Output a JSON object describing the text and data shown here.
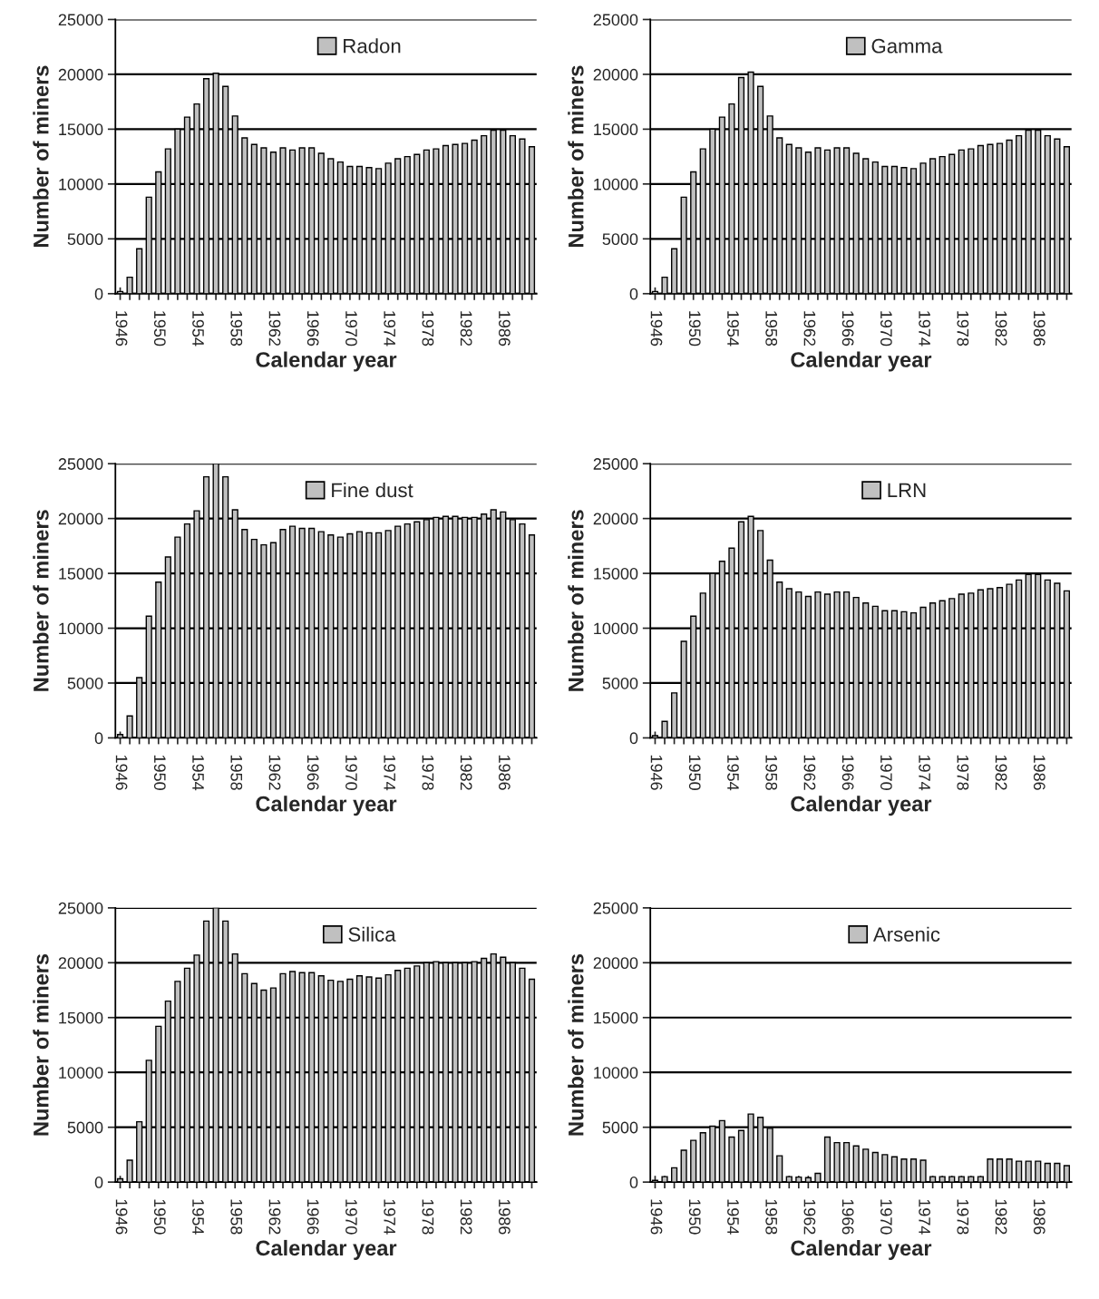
{
  "chart_data": [
    {
      "type": "bar",
      "categories": [
        "1946",
        null,
        null,
        null,
        "1950",
        null,
        null,
        null,
        "1954",
        null,
        null,
        null,
        "1958",
        null,
        null,
        null,
        "1962",
        null,
        null,
        null,
        "1966",
        null,
        null,
        null,
        "1970",
        null,
        null,
        null,
        "1974",
        null,
        null,
        null,
        "1978",
        null,
        null,
        null,
        "1982",
        null,
        null,
        null,
        "1986",
        null,
        null,
        null
      ],
      "series": [
        {
          "name": "Radon",
          "color": "#c0c0c0",
          "values": [
            200,
            1500,
            4100,
            8800,
            11100,
            13200,
            15000,
            16100,
            17300,
            19600,
            20100,
            18900,
            16200,
            14200,
            13600,
            13300,
            12900,
            13300,
            13100,
            13300,
            13300,
            12800,
            12300,
            12000,
            11600,
            11600,
            11500,
            11400,
            11900,
            12300,
            12500,
            12700,
            13100,
            13200,
            13500,
            13600,
            13700,
            14000,
            14400,
            14900,
            14900,
            14400,
            14100,
            13400
          ]
        }
      ],
      "xlabel": "Calendar year",
      "ylabel": "Number of miners",
      "ylim": [
        0,
        25000
      ],
      "yticks": [
        0,
        5000,
        10000,
        15000,
        20000,
        25000
      ],
      "grid": "y",
      "legend": "top"
    },
    {
      "type": "bar",
      "categories": [
        "1946",
        null,
        null,
        null,
        "1950",
        null,
        null,
        null,
        "1954",
        null,
        null,
        null,
        "1958",
        null,
        null,
        null,
        "1962",
        null,
        null,
        null,
        "1966",
        null,
        null,
        null,
        "1970",
        null,
        null,
        null,
        "1974",
        null,
        null,
        null,
        "1978",
        null,
        null,
        null,
        "1982",
        null,
        null,
        null,
        "1986",
        null,
        null,
        null
      ],
      "series": [
        {
          "name": "Gamma",
          "color": "#c0c0c0",
          "values": [
            200,
            1500,
            4100,
            8800,
            11100,
            13200,
            15000,
            16100,
            17300,
            19700,
            20200,
            18900,
            16200,
            14200,
            13600,
            13300,
            12900,
            13300,
            13100,
            13300,
            13300,
            12800,
            12300,
            12000,
            11600,
            11600,
            11500,
            11400,
            11900,
            12300,
            12500,
            12700,
            13100,
            13200,
            13500,
            13600,
            13700,
            14000,
            14400,
            14900,
            14900,
            14400,
            14100,
            13400
          ]
        }
      ],
      "xlabel": "Calendar year",
      "ylabel": "Number of miners",
      "ylim": [
        0,
        25000
      ],
      "yticks": [
        0,
        5000,
        10000,
        15000,
        20000,
        25000
      ],
      "grid": "y",
      "legend": "top"
    },
    {
      "type": "bar",
      "categories": [
        "1946",
        null,
        null,
        null,
        "1950",
        null,
        null,
        null,
        "1954",
        null,
        null,
        null,
        "1958",
        null,
        null,
        null,
        "1962",
        null,
        null,
        null,
        "1966",
        null,
        null,
        null,
        "1970",
        null,
        null,
        null,
        "1974",
        null,
        null,
        null,
        "1978",
        null,
        null,
        null,
        "1982",
        null,
        null,
        null,
        "1986",
        null,
        null,
        null
      ],
      "series": [
        {
          "name": "Fine dust",
          "color": "#c0c0c0",
          "values": [
            300,
            2000,
            5500,
            11100,
            14200,
            16500,
            18300,
            19500,
            20700,
            23800,
            25000,
            23800,
            20800,
            19000,
            18100,
            17600,
            17800,
            19000,
            19300,
            19100,
            19100,
            18800,
            18500,
            18300,
            18600,
            18800,
            18700,
            18700,
            18900,
            19300,
            19500,
            19700,
            19900,
            20100,
            20200,
            20200,
            20100,
            20100,
            20400,
            20800,
            20600,
            19900,
            19500,
            18500
          ]
        }
      ],
      "xlabel": "Calendar year",
      "ylabel": "Number of miners",
      "ylim": [
        0,
        25000
      ],
      "yticks": [
        0,
        5000,
        10000,
        15000,
        20000,
        25000
      ],
      "grid": "y",
      "legend": "top"
    },
    {
      "type": "bar",
      "categories": [
        "1946",
        null,
        null,
        null,
        "1950",
        null,
        null,
        null,
        "1954",
        null,
        null,
        null,
        "1958",
        null,
        null,
        null,
        "1962",
        null,
        null,
        null,
        "1966",
        null,
        null,
        null,
        "1970",
        null,
        null,
        null,
        "1974",
        null,
        null,
        null,
        "1978",
        null,
        null,
        null,
        "1982",
        null,
        null,
        null,
        "1986",
        null,
        null,
        null
      ],
      "series": [
        {
          "name": "LRN",
          "color": "#c0c0c0",
          "values": [
            200,
            1500,
            4100,
            8800,
            11100,
            13200,
            15000,
            16100,
            17300,
            19700,
            20200,
            18900,
            16200,
            14200,
            13600,
            13300,
            12900,
            13300,
            13100,
            13300,
            13300,
            12800,
            12300,
            12000,
            11600,
            11600,
            11500,
            11400,
            11900,
            12300,
            12500,
            12700,
            13100,
            13200,
            13500,
            13600,
            13700,
            14000,
            14400,
            14900,
            14900,
            14400,
            14100,
            13400
          ]
        }
      ],
      "xlabel": "Calendar year",
      "ylabel": "Number of miners",
      "ylim": [
        0,
        25000
      ],
      "yticks": [
        0,
        5000,
        10000,
        15000,
        20000,
        25000
      ],
      "grid": "y",
      "legend": "top"
    },
    {
      "type": "bar",
      "categories": [
        "1946",
        null,
        null,
        null,
        "1950",
        null,
        null,
        null,
        "1954",
        null,
        null,
        null,
        "1958",
        null,
        null,
        null,
        "1962",
        null,
        null,
        null,
        "1966",
        null,
        null,
        null,
        "1970",
        null,
        null,
        null,
        "1974",
        null,
        null,
        null,
        "1978",
        null,
        null,
        null,
        "1982",
        null,
        null,
        null,
        "1986",
        null,
        null,
        null
      ],
      "series": [
        {
          "name": "Silica",
          "color": "#c0c0c0",
          "values": [
            300,
            2000,
            5500,
            11100,
            14200,
            16500,
            18300,
            19500,
            20700,
            23800,
            25000,
            23800,
            20800,
            19000,
            18100,
            17500,
            17700,
            19000,
            19200,
            19100,
            19100,
            18800,
            18400,
            18300,
            18500,
            18800,
            18700,
            18600,
            18900,
            19300,
            19500,
            19700,
            20000,
            20100,
            20000,
            20000,
            20000,
            20100,
            20400,
            20800,
            20500,
            20000,
            19500,
            18500
          ]
        }
      ],
      "xlabel": "Calendar year",
      "ylabel": "Number of miners",
      "ylim": [
        0,
        25000
      ],
      "yticks": [
        0,
        5000,
        10000,
        15000,
        20000,
        25000
      ],
      "grid": "y",
      "legend": "top"
    },
    {
      "type": "bar",
      "categories": [
        "1946",
        null,
        null,
        null,
        "1950",
        null,
        null,
        null,
        "1954",
        null,
        null,
        null,
        "1958",
        null,
        null,
        null,
        "1962",
        null,
        null,
        null,
        "1966",
        null,
        null,
        null,
        "1970",
        null,
        null,
        null,
        "1974",
        null,
        null,
        null,
        "1978",
        null,
        null,
        null,
        "1982",
        null,
        null,
        null,
        "1986",
        null,
        null,
        null
      ],
      "series": [
        {
          "name": "Arsenic",
          "color": "#c0c0c0",
          "values": [
            150,
            500,
            1300,
            2900,
            3800,
            4500,
            5100,
            5600,
            4100,
            4700,
            6200,
            5900,
            4900,
            2400,
            500,
            450,
            400,
            800,
            4100,
            3600,
            3600,
            3300,
            3000,
            2700,
            2500,
            2300,
            2100,
            2100,
            2000,
            500,
            500,
            500,
            500,
            500,
            500,
            2100,
            2100,
            2100,
            1900,
            1900,
            1900,
            1700,
            1700,
            1500
          ]
        }
      ],
      "xlabel": "Calendar year",
      "ylabel": "Number of miners",
      "ylim": [
        0,
        25000
      ],
      "yticks": [
        0,
        5000,
        10000,
        15000,
        20000,
        25000
      ],
      "grid": "y",
      "legend": "top"
    }
  ]
}
